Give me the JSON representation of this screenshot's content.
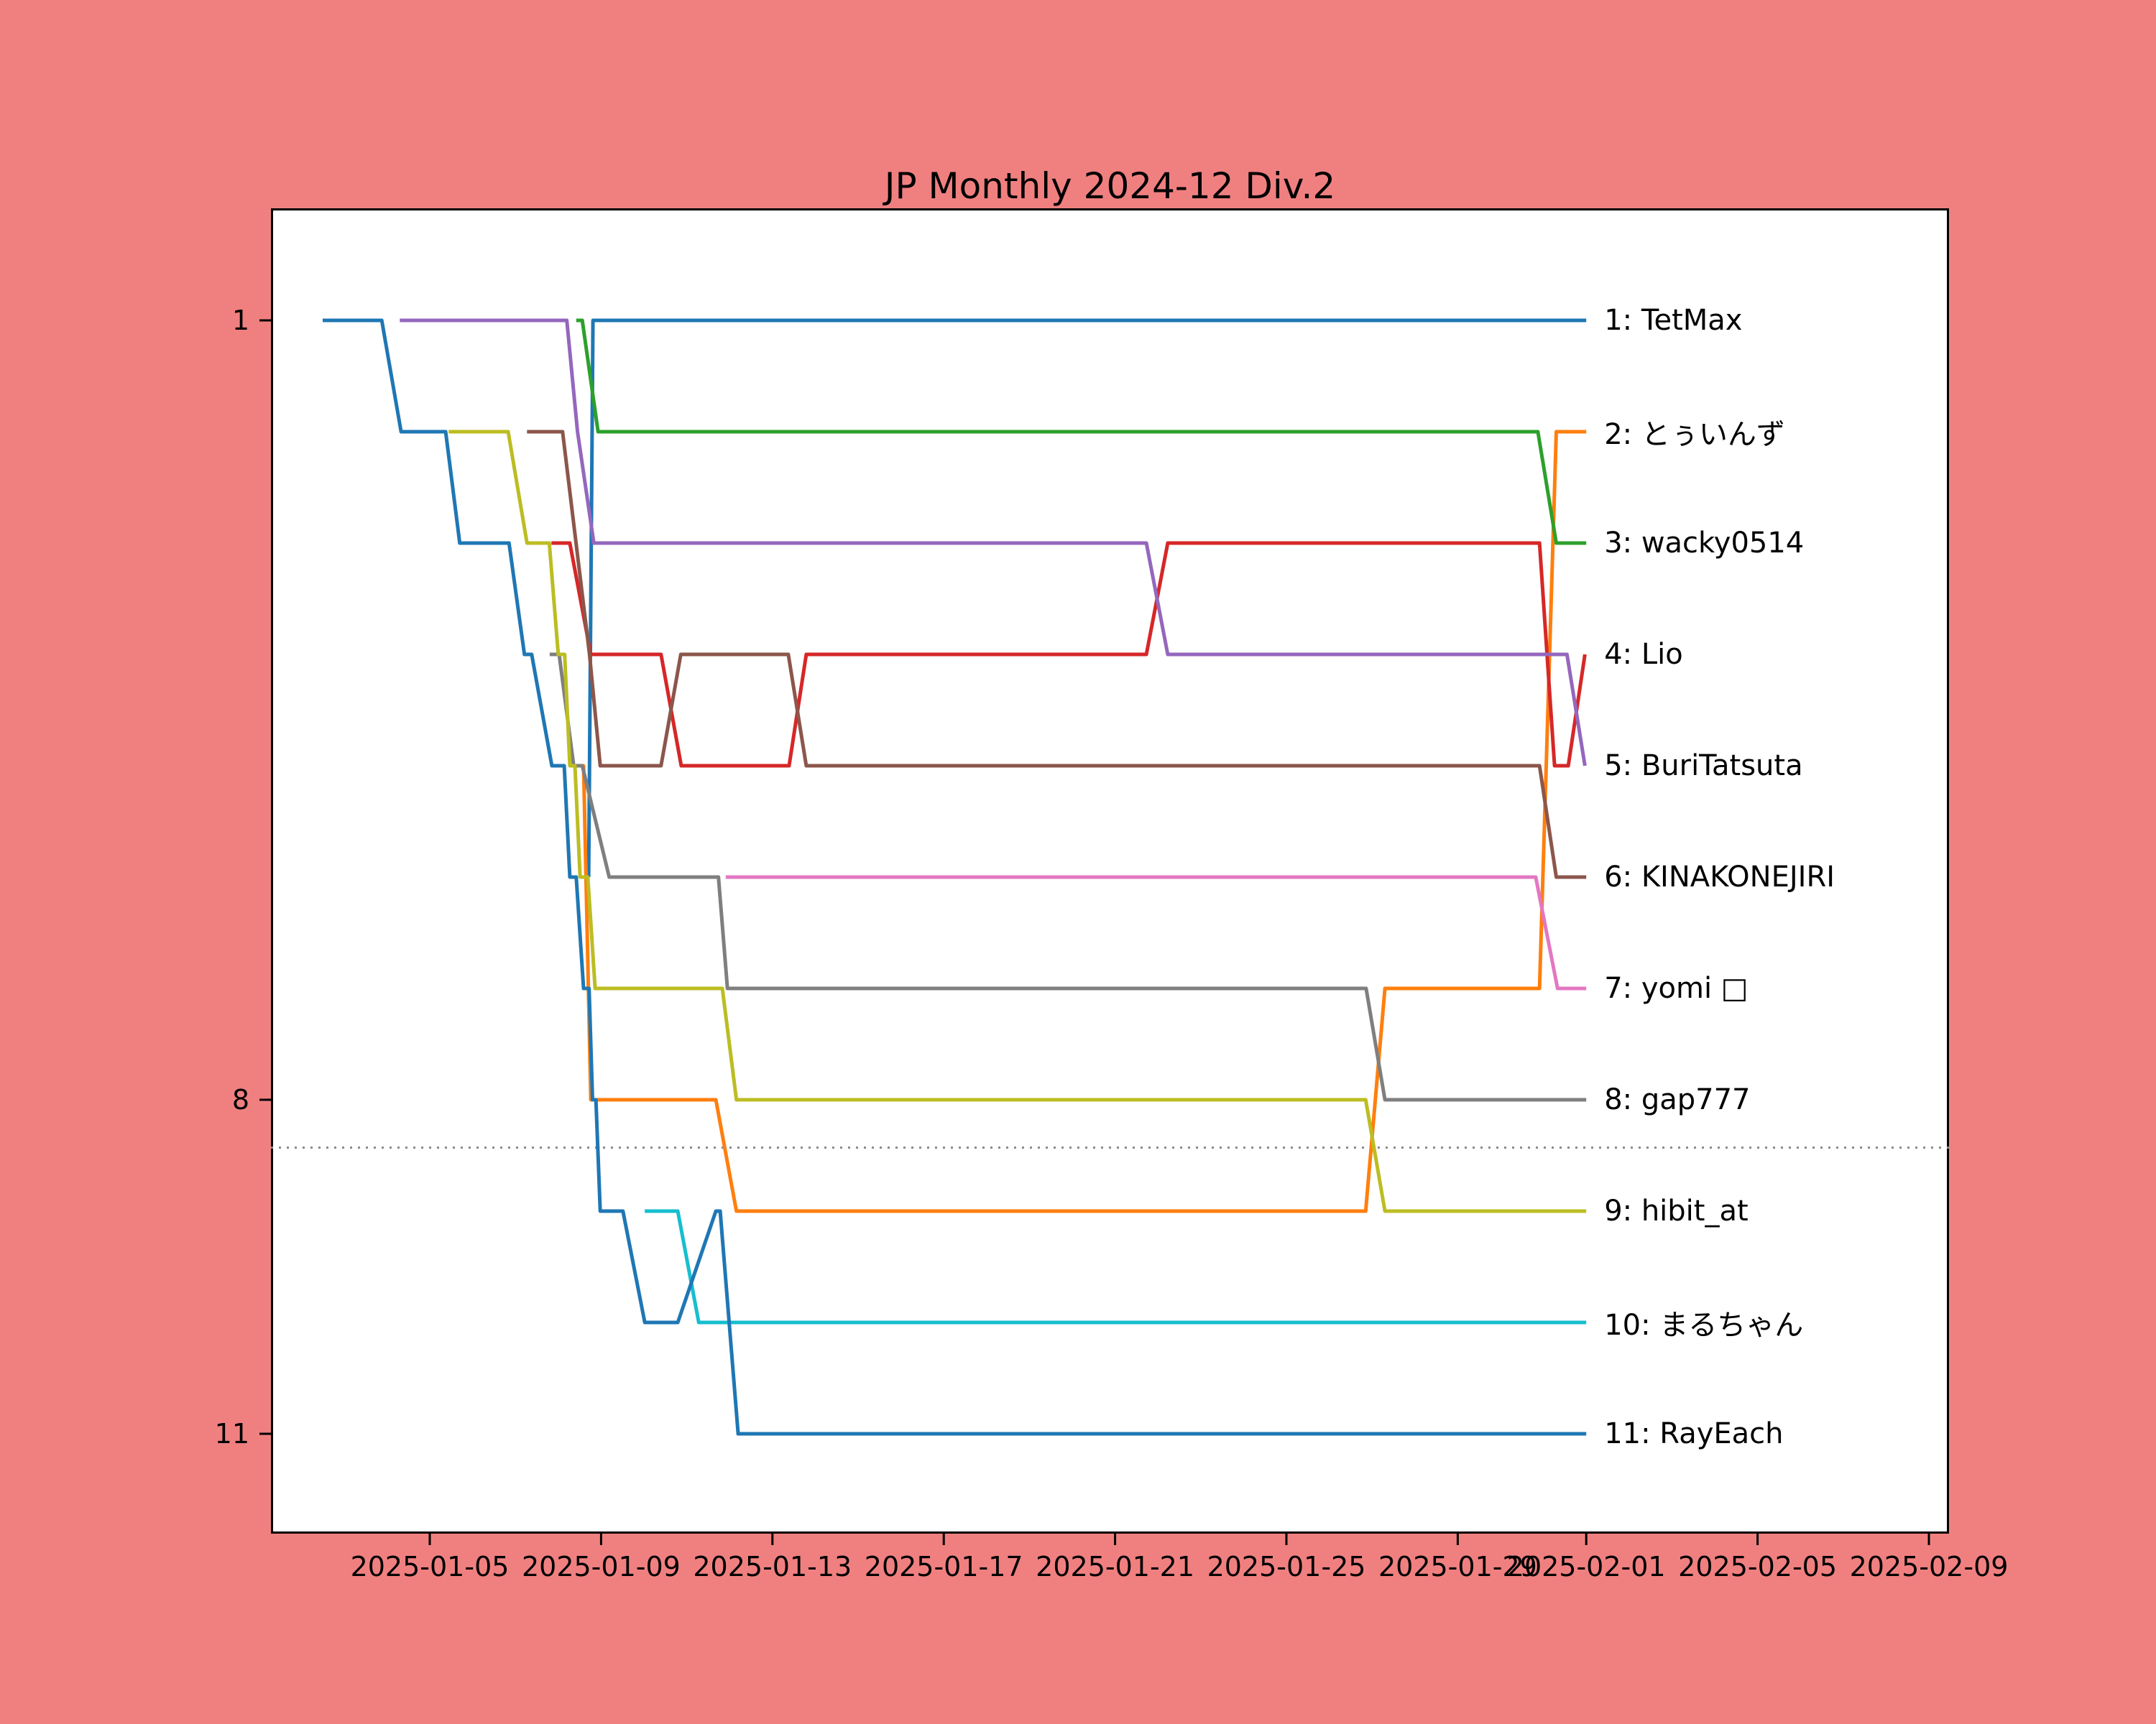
{
  "title": "JP Monthly 2024-12 Div.2",
  "background_color": "#F08080",
  "plot_background_color": "#FFFFFF",
  "axis_color": "#000000",
  "chart_data": {
    "type": "line",
    "subtype": "bump-rank-chart",
    "title": "JP Monthly 2024-12 Div.2",
    "xlabel": "",
    "ylabel": "",
    "x_unit": "days since 2025-01-01",
    "xlim_days": [
      0.3,
      39.5
    ],
    "ylim_ranks_top_to_bottom": [
      0,
      11.9
    ],
    "grid": false,
    "legend_position": "right-of-line-ends",
    "x_ticks": [
      {
        "day": 4,
        "label": "2025-01-05"
      },
      {
        "day": 8,
        "label": "2025-01-09"
      },
      {
        "day": 12,
        "label": "2025-01-13"
      },
      {
        "day": 16,
        "label": "2025-01-17"
      },
      {
        "day": 20,
        "label": "2025-01-21"
      },
      {
        "day": 24,
        "label": "2025-01-25"
      },
      {
        "day": 28,
        "label": "2025-01-29"
      },
      {
        "day": 31,
        "label": "2025-02-01"
      },
      {
        "day": 35,
        "label": "2025-02-05"
      },
      {
        "day": 39,
        "label": "2025-02-09"
      }
    ],
    "y_ticks": [
      {
        "rank": 1,
        "label": "1"
      },
      {
        "rank": 8,
        "label": "8"
      },
      {
        "rank": 11,
        "label": "11"
      }
    ],
    "cutoff_line": {
      "rank": 8.43,
      "style": "dotted",
      "color": "#888888",
      "meaning": "promotion/demotion cutoff between rank 8 and 9"
    },
    "series": [
      {
        "name": "TetMax",
        "legend_label": "1: TetMax",
        "final_rank": 1,
        "color": "#1f77b4",
        "points": [
          [
            7.71,
            6
          ],
          [
            7.81,
            1
          ],
          [
            31,
            1
          ]
        ]
      },
      {
        "name": "とぅいんず",
        "legend_label": "2: とぅいんず",
        "final_rank": 2,
        "color": "#ff7f0e",
        "points": [
          [
            7.47,
            5
          ],
          [
            7.59,
            5
          ],
          [
            7.76,
            8
          ],
          [
            10.68,
            8
          ],
          [
            11.16,
            9
          ],
          [
            25.85,
            9
          ],
          [
            26.3,
            7
          ],
          [
            29.91,
            7
          ],
          [
            30.3,
            2
          ],
          [
            31,
            2
          ]
        ]
      },
      {
        "name": "wacky0514",
        "legend_label": "3: wacky0514",
        "final_rank": 3,
        "color": "#2ca02c",
        "points": [
          [
            7.42,
            1
          ],
          [
            7.56,
            1
          ],
          [
            7.93,
            2
          ],
          [
            29.87,
            2
          ],
          [
            30.3,
            3
          ],
          [
            31,
            3
          ]
        ]
      },
      {
        "name": "Lio",
        "legend_label": "4: Lio",
        "final_rank": 4,
        "color": "#d62728",
        "points": [
          [
            6.84,
            3
          ],
          [
            7.27,
            3
          ],
          [
            7.76,
            4
          ],
          [
            9.4,
            4
          ],
          [
            9.87,
            5
          ],
          [
            12.39,
            5
          ],
          [
            12.79,
            4
          ],
          [
            20.73,
            4
          ],
          [
            21.23,
            3
          ],
          [
            29.91,
            3
          ],
          [
            30.26,
            5
          ],
          [
            30.58,
            5
          ],
          [
            30.97,
            4
          ]
        ]
      },
      {
        "name": "BuriTatsuta",
        "legend_label": "5: BuriTatsuta",
        "final_rank": 5,
        "color": "#9467bd",
        "points": [
          [
            3.3,
            1
          ],
          [
            7.2,
            1
          ],
          [
            7.45,
            2
          ],
          [
            7.83,
            3
          ],
          [
            20.73,
            3
          ],
          [
            21.23,
            4
          ],
          [
            30.55,
            4
          ],
          [
            30.97,
            5
          ]
        ]
      },
      {
        "name": "KINAKONEJIRI",
        "legend_label": "6: KINAKONEJIRI",
        "final_rank": 6,
        "color": "#8c564b",
        "points": [
          [
            6.27,
            2
          ],
          [
            7.1,
            2
          ],
          [
            7.73,
            4
          ],
          [
            7.98,
            5
          ],
          [
            9.4,
            5
          ],
          [
            9.86,
            4
          ],
          [
            12.37,
            4
          ],
          [
            12.79,
            5
          ],
          [
            29.91,
            5
          ],
          [
            30.3,
            6
          ],
          [
            31,
            6
          ]
        ]
      },
      {
        "name": "yomi □",
        "legend_label": "7: yomi □",
        "final_rank": 7,
        "color": "#e377c2",
        "points": [
          [
            10.91,
            6
          ],
          [
            29.82,
            6
          ],
          [
            30.33,
            7
          ],
          [
            31,
            7
          ]
        ]
      },
      {
        "name": "gap777",
        "legend_label": "8: gap777",
        "final_rank": 8,
        "color": "#7f7f7f",
        "points": [
          [
            6.8,
            4
          ],
          [
            7.02,
            4
          ],
          [
            7.36,
            5
          ],
          [
            7.56,
            5
          ],
          [
            8.19,
            6
          ],
          [
            10.74,
            6
          ],
          [
            10.95,
            7
          ],
          [
            25.86,
            7
          ],
          [
            26.3,
            8
          ],
          [
            31,
            8
          ]
        ]
      },
      {
        "name": "hibit_at",
        "legend_label": "9: hibit_at",
        "final_rank": 9,
        "color": "#bcbd22",
        "points": [
          [
            4.44,
            2
          ],
          [
            5.83,
            2
          ],
          [
            6.27,
            3
          ],
          [
            6.79,
            3
          ],
          [
            7.0,
            4
          ],
          [
            7.15,
            4
          ],
          [
            7.27,
            5
          ],
          [
            7.39,
            5
          ],
          [
            7.51,
            6
          ],
          [
            7.69,
            6
          ],
          [
            7.86,
            7
          ],
          [
            10.83,
            7
          ],
          [
            11.16,
            8
          ],
          [
            25.85,
            8
          ],
          [
            26.3,
            9
          ],
          [
            31,
            9
          ]
        ]
      },
      {
        "name": "まるちゃん",
        "legend_label": "10: まるちゃん",
        "final_rank": 10,
        "color": "#17becf",
        "points": [
          [
            9.02,
            9
          ],
          [
            9.79,
            9
          ],
          [
            10.28,
            10
          ],
          [
            31,
            10
          ]
        ]
      },
      {
        "name": "RayEach",
        "legend_label": "11: RayEach",
        "final_rank": 11,
        "color": "#1f77b4",
        "points": [
          [
            1.5,
            1
          ],
          [
            2.88,
            1
          ],
          [
            3.33,
            2
          ],
          [
            4.37,
            2
          ],
          [
            4.7,
            3
          ],
          [
            5.85,
            3
          ],
          [
            6.21,
            4
          ],
          [
            6.38,
            4
          ],
          [
            6.85,
            5
          ],
          [
            7.14,
            5
          ],
          [
            7.27,
            6
          ],
          [
            7.42,
            6
          ],
          [
            7.59,
            7
          ],
          [
            7.72,
            7
          ],
          [
            7.8,
            8
          ],
          [
            7.88,
            8
          ],
          [
            7.98,
            9
          ],
          [
            8.51,
            9
          ],
          [
            9.02,
            10
          ],
          [
            9.79,
            10
          ],
          [
            10.68,
            9
          ],
          [
            10.78,
            9
          ],
          [
            11.2,
            11
          ],
          [
            31,
            11
          ]
        ]
      }
    ]
  }
}
